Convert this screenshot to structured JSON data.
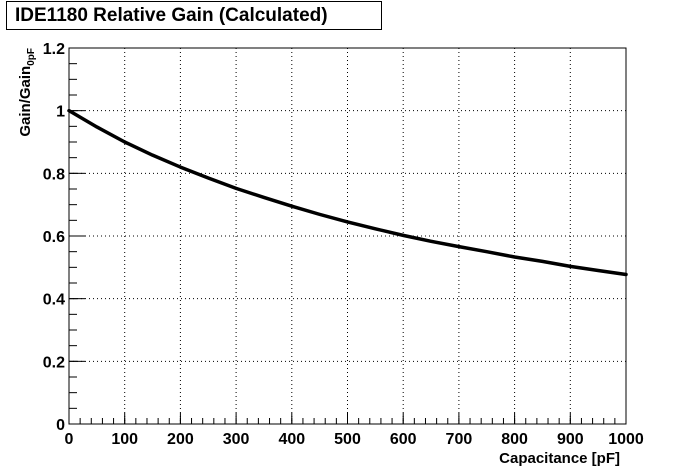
{
  "chart_data": {
    "type": "line",
    "title": "IDE1180 Relative Gain (Calculated)",
    "xlabel": "Capacitance [pF]",
    "ylabel": "Gain/Gain",
    "ylabel_subscript": "0pF",
    "xlim": [
      0,
      1000
    ],
    "ylim": [
      0,
      1.2
    ],
    "x_ticks": [
      "0",
      "100",
      "200",
      "300",
      "400",
      "500",
      "600",
      "700",
      "800",
      "900",
      "1000"
    ],
    "y_ticks": [
      "0",
      "0.2",
      "0.4",
      "0.6",
      "0.8",
      "1",
      "1.2"
    ],
    "grid": true,
    "series": [
      {
        "color": "#000000",
        "x": [
          0,
          50,
          100,
          150,
          200,
          250,
          300,
          350,
          400,
          450,
          500,
          550,
          600,
          650,
          700,
          750,
          800,
          850,
          900,
          950,
          1000
        ],
        "y": [
          1.0,
          0.948,
          0.9,
          0.858,
          0.82,
          0.785,
          0.752,
          0.723,
          0.695,
          0.669,
          0.645,
          0.623,
          0.602,
          0.583,
          0.566,
          0.55,
          0.533,
          0.519,
          0.503,
          0.49,
          0.477
        ]
      }
    ]
  }
}
